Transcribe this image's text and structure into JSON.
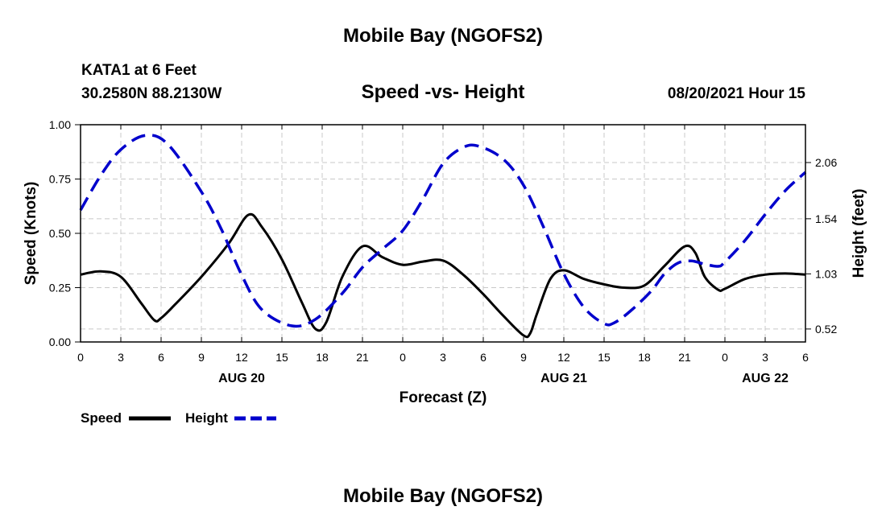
{
  "header": {
    "title": "Mobile Bay (NGOFS2)",
    "station": "KATA1 at 6 Feet",
    "coords": "30.2580N  88.2130W",
    "subtitle": "Speed -vs- Height",
    "datetime": "08/20/2021 Hour 15"
  },
  "footer": {
    "title": "Mobile Bay (NGOFS2)"
  },
  "legend": {
    "speed_label": "Speed",
    "height_label": "Height"
  },
  "chart_data": {
    "type": "line",
    "title": "Speed -vs- Height",
    "xlabel": "Forecast (Z)",
    "ylabel": "Speed (Knots)",
    "y2label": "Height (feet)",
    "xlim": [
      0,
      54
    ],
    "ylim": [
      0,
      1
    ],
    "y2lim": [
      0.4,
      2.41
    ],
    "x_ticks": [
      0,
      3,
      6,
      9,
      12,
      15,
      18,
      21,
      24,
      27,
      30,
      33,
      36,
      39,
      42,
      45,
      48,
      51,
      54
    ],
    "x_tick_labels": [
      "0",
      "3",
      "6",
      "9",
      "12",
      "15",
      "18",
      "21",
      "0",
      "3",
      "6",
      "9",
      "12",
      "15",
      "18",
      "21",
      "0",
      "3",
      "6"
    ],
    "date_labels": [
      {
        "x": 12,
        "label": "AUG 20"
      },
      {
        "x": 36,
        "label": "AUG 21"
      },
      {
        "x": 51,
        "label": "AUG 22"
      }
    ],
    "y_ticks": [
      0,
      0.25,
      0.5,
      0.75,
      1.0
    ],
    "y_tick_labels": [
      "0.00",
      "0.25",
      "0.50",
      "0.75",
      "1.00"
    ],
    "y2_ticks": [
      0.52,
      1.03,
      1.54,
      2.06
    ],
    "y2_tick_labels": [
      "0.52",
      "1.03",
      "1.54",
      "2.06"
    ],
    "grid": true,
    "legend_position": "bottom-left",
    "series": [
      {
        "name": "Speed",
        "axis": "left",
        "color": "#000000",
        "style": "solid",
        "x": [
          0,
          1.5,
          3,
          4.5,
          5.5,
          6,
          7,
          9,
          11,
          12.5,
          13.5,
          15,
          16.5,
          17.5,
          18.3,
          19.5,
          21,
          22.5,
          24,
          25.5,
          27,
          28.5,
          30,
          31.5,
          33,
          33.5,
          34,
          35,
          36,
          37.5,
          39,
          40.5,
          42,
          43.5,
          45,
          45.8,
          46.5,
          47.5,
          48,
          49.5,
          51,
          52.5,
          54
        ],
        "y": [
          0.31,
          0.325,
          0.3,
          0.18,
          0.1,
          0.11,
          0.17,
          0.3,
          0.45,
          0.585,
          0.53,
          0.38,
          0.18,
          0.06,
          0.09,
          0.3,
          0.44,
          0.39,
          0.355,
          0.37,
          0.375,
          0.31,
          0.22,
          0.12,
          0.03,
          0.04,
          0.13,
          0.29,
          0.33,
          0.29,
          0.265,
          0.25,
          0.26,
          0.35,
          0.44,
          0.41,
          0.3,
          0.24,
          0.245,
          0.29,
          0.31,
          0.315,
          0.31
        ]
      },
      {
        "name": "Height",
        "axis": "right",
        "color": "#0000cc",
        "style": "dashed",
        "x": [
          0,
          1.5,
          3,
          4.8,
          6.5,
          9,
          10.5,
          12,
          13.5,
          15.7,
          17.5,
          19.5,
          21,
          22.5,
          24,
          25.5,
          27,
          28.5,
          29.7,
          31.5,
          33,
          34.5,
          36,
          37.5,
          39,
          39.8,
          41,
          42.5,
          43.5,
          44.5,
          45.5,
          46.5,
          47.5,
          48,
          49.5,
          51,
          52.5,
          54
        ],
        "y": [
          1.62,
          1.94,
          2.18,
          2.31,
          2.23,
          1.79,
          1.44,
          1.02,
          0.7,
          0.55,
          0.61,
          0.85,
          1.09,
          1.26,
          1.43,
          1.72,
          2.05,
          2.2,
          2.21,
          2.09,
          1.85,
          1.46,
          1.03,
          0.72,
          0.57,
          0.58,
          0.69,
          0.87,
          1.03,
          1.13,
          1.15,
          1.12,
          1.1,
          1.14,
          1.34,
          1.58,
          1.8,
          1.97
        ]
      }
    ]
  }
}
